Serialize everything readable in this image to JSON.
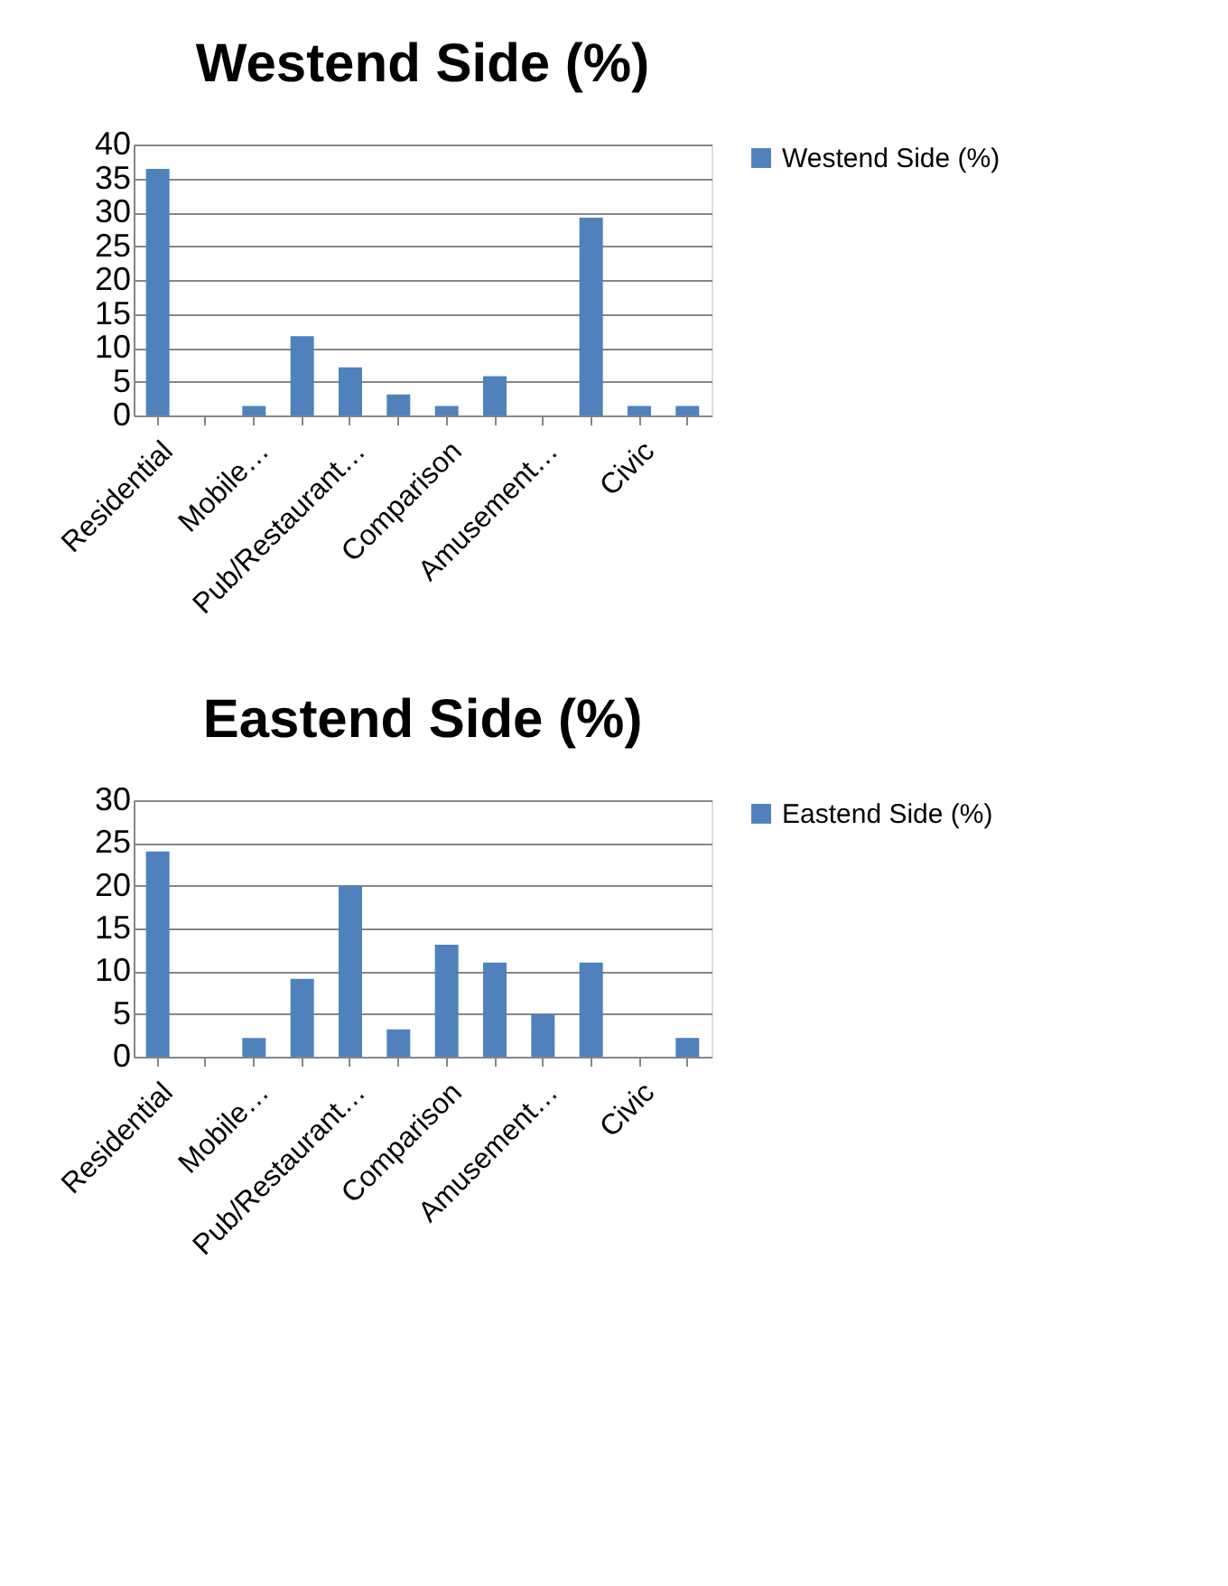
{
  "chart_data": [
    {
      "type": "bar",
      "title": "Westend Side (%)",
      "categories": [
        "Residential",
        null,
        "Mobile…",
        null,
        "Pub/Restaurant…",
        null,
        "Comparison",
        null,
        "Amusement…",
        null,
        "Civic",
        null
      ],
      "series": [
        {
          "name": "Westend Side (%)",
          "color": "#4f81bd",
          "values": [
            36.4,
            0,
            1.4,
            11.7,
            7.1,
            3.1,
            1.4,
            5.8,
            0,
            29.2,
            1.4,
            1.4
          ]
        }
      ],
      "ylim": [
        0,
        40
      ],
      "yticks": [
        0,
        5,
        10,
        15,
        20,
        25,
        30,
        35,
        40
      ],
      "grid": "y",
      "legend": "right"
    },
    {
      "type": "bar",
      "title": "Eastend Side (%)",
      "categories": [
        "Residential",
        null,
        "Mobile…",
        null,
        "Pub/Restaurant…",
        null,
        "Comparison",
        null,
        "Amusement…",
        null,
        "Civic",
        null
      ],
      "series": [
        {
          "name": "Eastend Side (%)",
          "color": "#4f81bd",
          "values": [
            24,
            0,
            2.2,
            9.1,
            20,
            3.2,
            13.1,
            11,
            5,
            11,
            0,
            2.2
          ]
        }
      ],
      "ylim": [
        0,
        30
      ],
      "yticks": [
        0,
        5,
        10,
        15,
        20,
        25,
        30
      ],
      "grid": "y",
      "legend": "right"
    }
  ]
}
